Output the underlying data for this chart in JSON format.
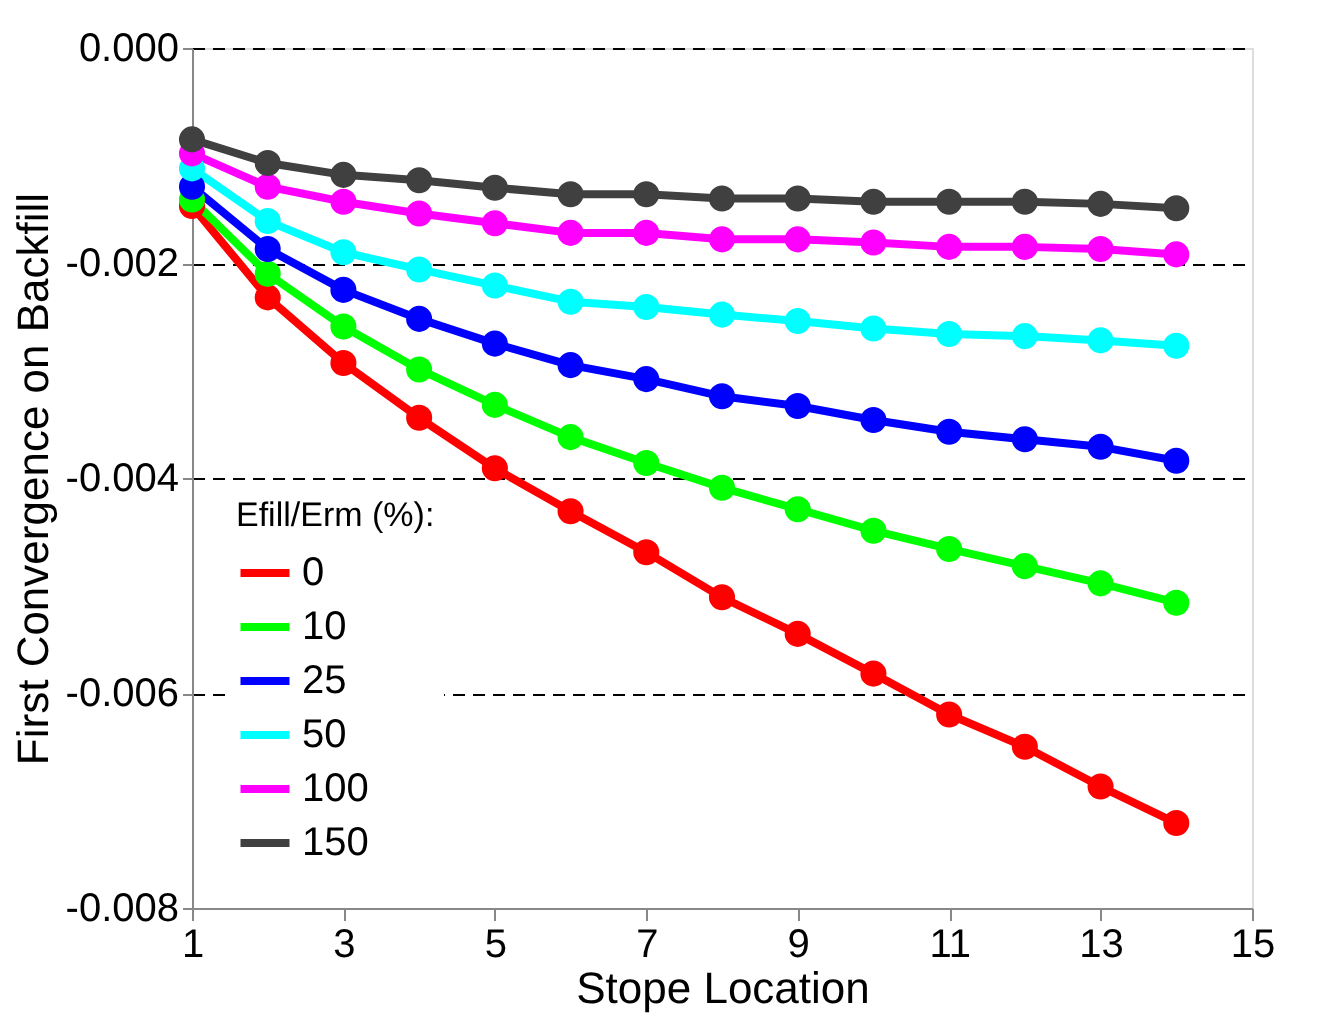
{
  "chart_data": {
    "type": "line",
    "xlabel": "Stope Location",
    "ylabel": "First Convergence on Backfill",
    "legend_title": "Efill/Erm (%):",
    "x": [
      1,
      2,
      3,
      4,
      5,
      6,
      7,
      8,
      9,
      10,
      11,
      12,
      13,
      14
    ],
    "series": [
      {
        "name": "0",
        "color": "#ff0000",
        "values": [
          -0.00147,
          -0.00232,
          -0.00293,
          -0.00344,
          -0.00391,
          -0.00431,
          -0.00469,
          -0.00511,
          -0.00545,
          -0.00582,
          -0.0062,
          -0.0065,
          -0.00687,
          -0.00721
        ]
      },
      {
        "name": "10",
        "color": "#00ff00",
        "values": [
          -0.00141,
          -0.0021,
          -0.00259,
          -0.00299,
          -0.00332,
          -0.00362,
          -0.00386,
          -0.00409,
          -0.00429,
          -0.00449,
          -0.00466,
          -0.00482,
          -0.00498,
          -0.00516
        ]
      },
      {
        "name": "25",
        "color": "#0000ff",
        "values": [
          -0.00129,
          -0.00187,
          -0.00225,
          -0.00252,
          -0.00275,
          -0.00295,
          -0.00308,
          -0.00324,
          -0.00333,
          -0.00346,
          -0.00357,
          -0.00364,
          -0.00371,
          -0.00384
        ]
      },
      {
        "name": "50",
        "color": "#00ffff",
        "values": [
          -0.00112,
          -0.00161,
          -0.0019,
          -0.00206,
          -0.00221,
          -0.00236,
          -0.00241,
          -0.00248,
          -0.00254,
          -0.00261,
          -0.00266,
          -0.00268,
          -0.00272,
          -0.00277
        ]
      },
      {
        "name": "100",
        "color": "#ff00ff",
        "values": [
          -0.00098,
          -0.00129,
          -0.00143,
          -0.00154,
          -0.00163,
          -0.00172,
          -0.00172,
          -0.00178,
          -0.00178,
          -0.00181,
          -0.00185,
          -0.00185,
          -0.00187,
          -0.00192
        ]
      },
      {
        "name": "150",
        "color": "#404040",
        "values": [
          -0.00085,
          -0.00107,
          -0.00118,
          -0.00123,
          -0.0013,
          -0.00136,
          -0.00136,
          -0.0014,
          -0.0014,
          -0.00143,
          -0.00143,
          -0.00143,
          -0.00145,
          -0.00149
        ]
      }
    ],
    "xlim": [
      1,
      15
    ],
    "xticks": [
      1,
      3,
      5,
      7,
      9,
      11,
      13,
      15
    ],
    "ylim": [
      -0.008,
      0.0
    ],
    "yticks": [
      {
        "value": -0.008,
        "label": "-0.008"
      },
      {
        "value": -0.006,
        "label": "-0.006"
      },
      {
        "value": -0.004,
        "label": "-0.004"
      },
      {
        "value": -0.002,
        "label": "-0.002"
      },
      {
        "value": 0.0,
        "label": "0.000"
      }
    ],
    "grid": "y",
    "line_style": "solid",
    "marker": "circle",
    "legend": "bottom left"
  }
}
